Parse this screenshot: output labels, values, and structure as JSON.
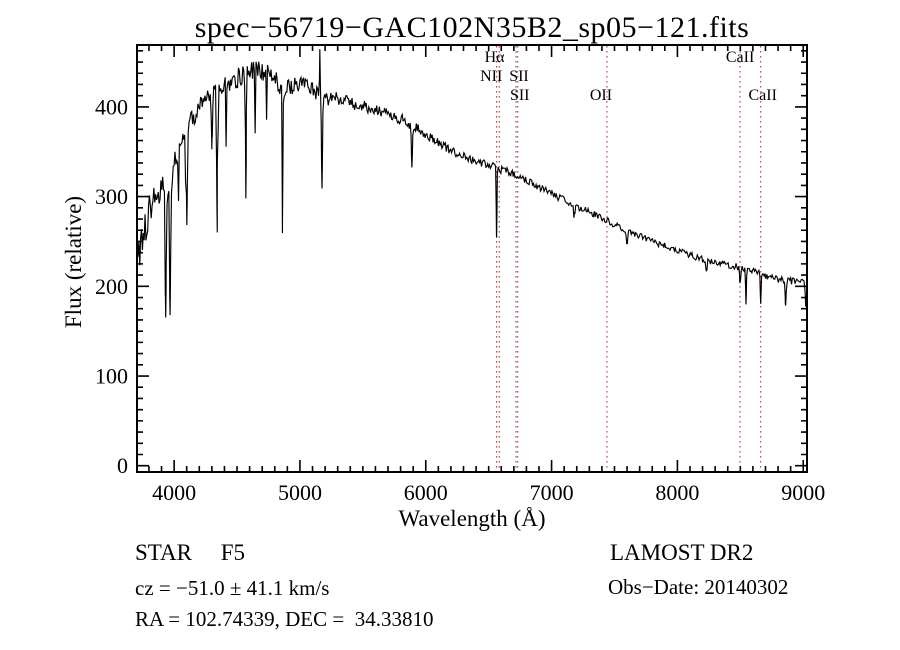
{
  "figure": {
    "title": "spec−56719−GAC102N35B2_sp05−121.fits",
    "footer": {
      "object_class": "STAR     F5",
      "survey_release": "LAMOST DR2",
      "radial_velocity": "cz = −51.0 ± 41.1 km/s",
      "obs_date": "Obs−Date: 20140302",
      "coordinates": "RA = 102.74339, DEC =  34.33810"
    }
  },
  "colors": {
    "background": "#ffffff",
    "spectrum": "#000000",
    "frame": "#000000",
    "text": "#000000",
    "reference_line": "#aa4444"
  },
  "chart_data": {
    "type": "line",
    "title": "spec−56719−GAC102N35B2_sp05−121.fits",
    "xlabel": "Wavelength (Å)",
    "ylabel": "Flux (relative)",
    "xlim": [
      3705,
      9030
    ],
    "ylim": [
      -7,
      469
    ],
    "x_major_ticks": [
      4000,
      5000,
      6000,
      7000,
      8000,
      9000
    ],
    "x_minor_step": 100,
    "y_major_ticks": [
      0,
      100,
      200,
      300,
      400
    ],
    "y_minor_step": 12.5,
    "grid": false,
    "legend": false,
    "marked_lines": [
      {
        "label": "Hα",
        "wavelength": 6563,
        "row": 1,
        "label_dx": -2
      },
      {
        "label": "NII",
        "wavelength": 6584,
        "row": 2,
        "label_dx": -8
      },
      {
        "label": "SII",
        "wavelength": 6717,
        "row": 2,
        "label_dx": 3
      },
      {
        "label": "SII",
        "wavelength": 6731,
        "row": 3,
        "label_dx": 2
      },
      {
        "label": "OII",
        "wavelength": 7440,
        "row": 3,
        "label_dx": -6
      },
      {
        "label": "CaII",
        "wavelength": 8498,
        "row": 1,
        "label_dx": 0
      },
      {
        "label": "CaII",
        "wavelength": 8662,
        "row": 3,
        "label_dx": 2
      }
    ],
    "continuum_anchors": [
      [
        3705,
        240
      ],
      [
        3760,
        258
      ],
      [
        3800,
        285
      ],
      [
        3850,
        300
      ],
      [
        3900,
        312
      ],
      [
        3960,
        305
      ],
      [
        4000,
        338
      ],
      [
        4050,
        358
      ],
      [
        4100,
        372
      ],
      [
        4150,
        388
      ],
      [
        4200,
        398
      ],
      [
        4250,
        406
      ],
      [
        4300,
        414
      ],
      [
        4400,
        424
      ],
      [
        4500,
        432
      ],
      [
        4600,
        439
      ],
      [
        4700,
        441
      ],
      [
        4800,
        431
      ],
      [
        4860,
        420
      ],
      [
        4950,
        424
      ],
      [
        5000,
        427
      ],
      [
        5100,
        419
      ],
      [
        5200,
        408
      ],
      [
        5300,
        410
      ],
      [
        5400,
        404
      ],
      [
        5500,
        401
      ],
      [
        5600,
        397
      ],
      [
        5700,
        392
      ],
      [
        5800,
        387
      ],
      [
        5900,
        379
      ],
      [
        6000,
        369
      ],
      [
        6100,
        360
      ],
      [
        6200,
        352
      ],
      [
        6300,
        345
      ],
      [
        6400,
        339
      ],
      [
        6500,
        335
      ],
      [
        6600,
        330
      ],
      [
        6700,
        326
      ],
      [
        6800,
        319
      ],
      [
        6900,
        311
      ],
      [
        7000,
        303
      ],
      [
        7100,
        296
      ],
      [
        7200,
        289
      ],
      [
        7300,
        283
      ],
      [
        7400,
        276
      ],
      [
        7500,
        269
      ],
      [
        7600,
        262
      ],
      [
        7700,
        256
      ],
      [
        7800,
        250
      ],
      [
        7900,
        245
      ],
      [
        8000,
        240
      ],
      [
        8100,
        235
      ],
      [
        8200,
        230
      ],
      [
        8300,
        227
      ],
      [
        8400,
        224
      ],
      [
        8500,
        221
      ],
      [
        8600,
        217
      ],
      [
        8700,
        212
      ],
      [
        8800,
        208
      ],
      [
        8900,
        206
      ],
      [
        9000,
        205
      ],
      [
        9030,
        203
      ]
    ],
    "absorption_features": [
      [
        3933,
        150,
        6
      ],
      [
        3968,
        145,
        6
      ],
      [
        4101,
        100,
        5
      ],
      [
        4300,
        55,
        5
      ],
      [
        4340,
        120,
        5
      ],
      [
        4570,
        130,
        4
      ],
      [
        4861,
        155,
        4
      ],
      [
        5175,
        105,
        5
      ],
      [
        5890,
        52,
        5
      ],
      [
        6563,
        80,
        4
      ],
      [
        7180,
        12,
        8
      ],
      [
        7600,
        14,
        8
      ],
      [
        8230,
        12,
        7
      ],
      [
        8498,
        20,
        5
      ],
      [
        8545,
        40,
        4
      ],
      [
        8662,
        35,
        4
      ],
      [
        8860,
        30,
        5
      ],
      [
        9020,
        25,
        5
      ]
    ],
    "emission_spikes": [
      [
        5158,
        60,
        3
      ]
    ],
    "noise_profile": [
      [
        3705,
        27
      ],
      [
        3780,
        20
      ],
      [
        3900,
        16
      ],
      [
        4000,
        13
      ],
      [
        4300,
        12
      ],
      [
        4700,
        11
      ],
      [
        5000,
        9
      ],
      [
        5400,
        7
      ],
      [
        5800,
        6
      ],
      [
        6200,
        5
      ],
      [
        6600,
        4.5
      ],
      [
        7000,
        4
      ],
      [
        7600,
        3.5
      ],
      [
        8300,
        3.5
      ],
      [
        9030,
        4
      ]
    ],
    "noise_seed": 20140302
  }
}
